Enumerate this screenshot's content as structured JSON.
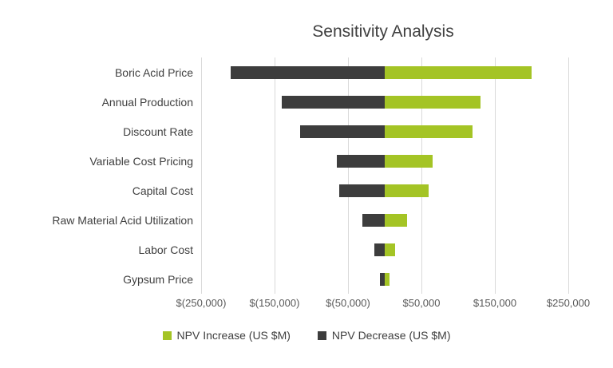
{
  "chart_data": {
    "type": "bar",
    "orientation": "horizontal",
    "variant": "tornado",
    "title": "Sensitivity Analysis",
    "categories": [
      "Boric Acid Price",
      "Annual Production",
      "Discount Rate",
      "Variable Cost Pricing",
      "Capital Cost",
      "Raw Material Acid Utilization",
      "Labor Cost",
      "Gypsum Price"
    ],
    "series": [
      {
        "name": "NPV Increase (US $M)",
        "color": "#a4c425",
        "values": [
          200000,
          130000,
          120000,
          65000,
          60000,
          30000,
          14000,
          6000
        ]
      },
      {
        "name": "NPV Decrease (US $M)",
        "color": "#3d3d3d",
        "values": [
          -210000,
          -140000,
          -115000,
          -65000,
          -62000,
          -30000,
          -14000,
          -7000
        ]
      }
    ],
    "xlim": [
      -250000,
      250000
    ],
    "x_ticks": [
      -250000,
      -150000,
      -50000,
      50000,
      150000,
      250000
    ],
    "x_tick_labels": [
      "$(250,000)",
      "$(150,000)",
      "$(50,000)",
      "$50,000",
      "$150,000",
      "$250,000"
    ],
    "grid": "vertical",
    "legend_position": "bottom"
  }
}
